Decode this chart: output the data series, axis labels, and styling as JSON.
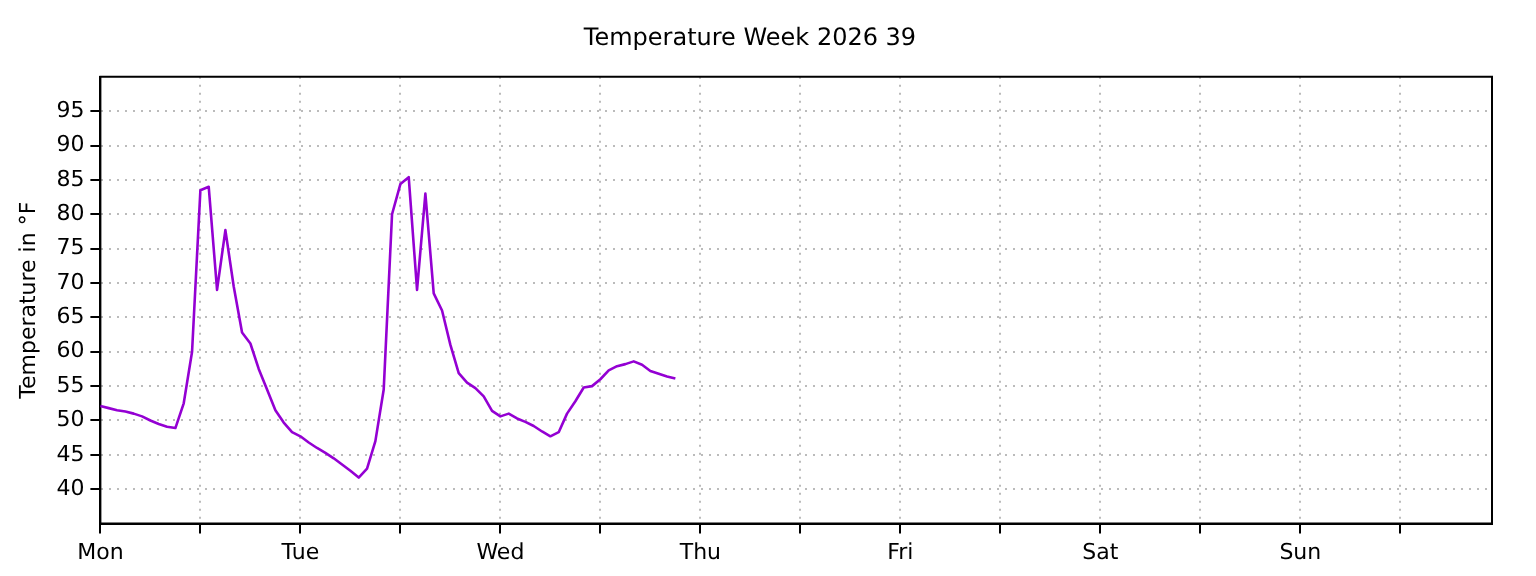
{
  "chart_data": {
    "type": "line",
    "title": "Temperature Week 2026 39",
    "ylabel": "Temperature in °F",
    "categories": [
      "Mon",
      null,
      null,
      null,
      null,
      null,
      null,
      null,
      null,
      null,
      null,
      null,
      null,
      null,
      null,
      null,
      null,
      null,
      null,
      null,
      null,
      null,
      null,
      null,
      "Tue",
      null,
      null,
      null,
      null,
      null,
      null,
      null,
      null,
      null,
      null,
      null,
      null,
      null,
      null,
      null,
      null,
      null,
      null,
      null,
      null,
      null,
      null,
      null,
      "Wed",
      null,
      null,
      null,
      null,
      null,
      null,
      null,
      null,
      null,
      null,
      null,
      null,
      null,
      null,
      null,
      null,
      null,
      null,
      null,
      null,
      null,
      null,
      null,
      "Thu",
      null,
      null,
      null,
      null,
      null,
      null,
      null,
      null,
      null,
      null,
      null,
      null,
      null,
      null,
      null,
      null,
      null,
      null,
      null,
      null,
      null,
      null,
      null,
      "Fri",
      null,
      null,
      null,
      null,
      null,
      null,
      null,
      null,
      null,
      null,
      null,
      null,
      null,
      null,
      null,
      null,
      null,
      null,
      null,
      null,
      null,
      null,
      null,
      "Sat",
      null,
      null,
      null,
      null,
      null,
      null,
      null,
      null,
      null,
      null,
      null,
      null,
      null,
      null,
      null,
      null,
      null,
      null,
      null,
      null,
      null,
      null,
      null,
      "Sun",
      null,
      null,
      null,
      null,
      null,
      null,
      null,
      null,
      null,
      null,
      null,
      null,
      null,
      null,
      null,
      null,
      null,
      null,
      null,
      null,
      null,
      null,
      null
    ],
    "ylim": [
      35,
      100
    ],
    "yticks": [
      40,
      45,
      50,
      55,
      60,
      65,
      70,
      75,
      80,
      85,
      90,
      95
    ],
    "grid": true,
    "legend": false,
    "marker": "none",
    "series": [
      {
        "color": "#9400d3",
        "values": [
          52.1,
          51.8,
          51.5,
          51.3,
          51.0,
          50.6,
          50.0,
          49.5,
          49.1,
          48.9,
          52.5,
          60,
          83.5,
          84,
          69,
          77.7,
          69.5,
          62.8,
          61.2,
          57.5,
          54.5,
          51.5,
          49.7,
          48.3,
          47.7,
          46.8,
          46,
          45.3,
          44.5,
          43.6,
          42.7,
          41.7,
          43,
          47,
          54.5,
          80,
          84.4,
          85.4,
          69,
          83,
          68.5,
          66,
          61,
          56.9,
          55.5,
          54.7,
          53.5,
          51.4,
          50.6,
          51,
          50.3,
          49.8,
          49.2,
          48.4,
          47.7,
          48.3,
          51,
          52.8,
          54.8,
          55,
          56,
          57.3,
          57.9,
          58.2,
          58.6,
          58.1,
          57.2,
          56.8,
          56.4,
          56.1,
          null,
          null,
          null,
          null,
          null,
          null,
          null,
          null,
          null,
          null,
          null,
          null,
          null,
          null,
          null,
          null,
          null,
          null,
          null,
          null,
          null,
          null,
          null,
          null,
          null,
          null,
          null,
          null,
          null,
          null,
          null,
          null,
          null,
          null,
          null,
          null,
          null,
          null,
          null,
          null,
          null,
          null,
          null,
          null,
          null,
          null,
          null,
          null,
          null,
          null,
          null,
          null,
          null,
          null,
          null,
          null,
          null,
          null,
          null,
          null,
          null,
          null,
          null,
          null,
          null,
          null,
          null,
          null,
          null,
          null,
          null,
          null,
          null,
          null,
          null,
          null,
          null,
          null,
          null,
          null,
          null,
          null,
          null,
          null,
          null,
          null,
          null,
          null,
          null,
          null,
          null,
          null,
          null,
          null,
          null,
          null,
          null,
          null
        ]
      }
    ]
  }
}
